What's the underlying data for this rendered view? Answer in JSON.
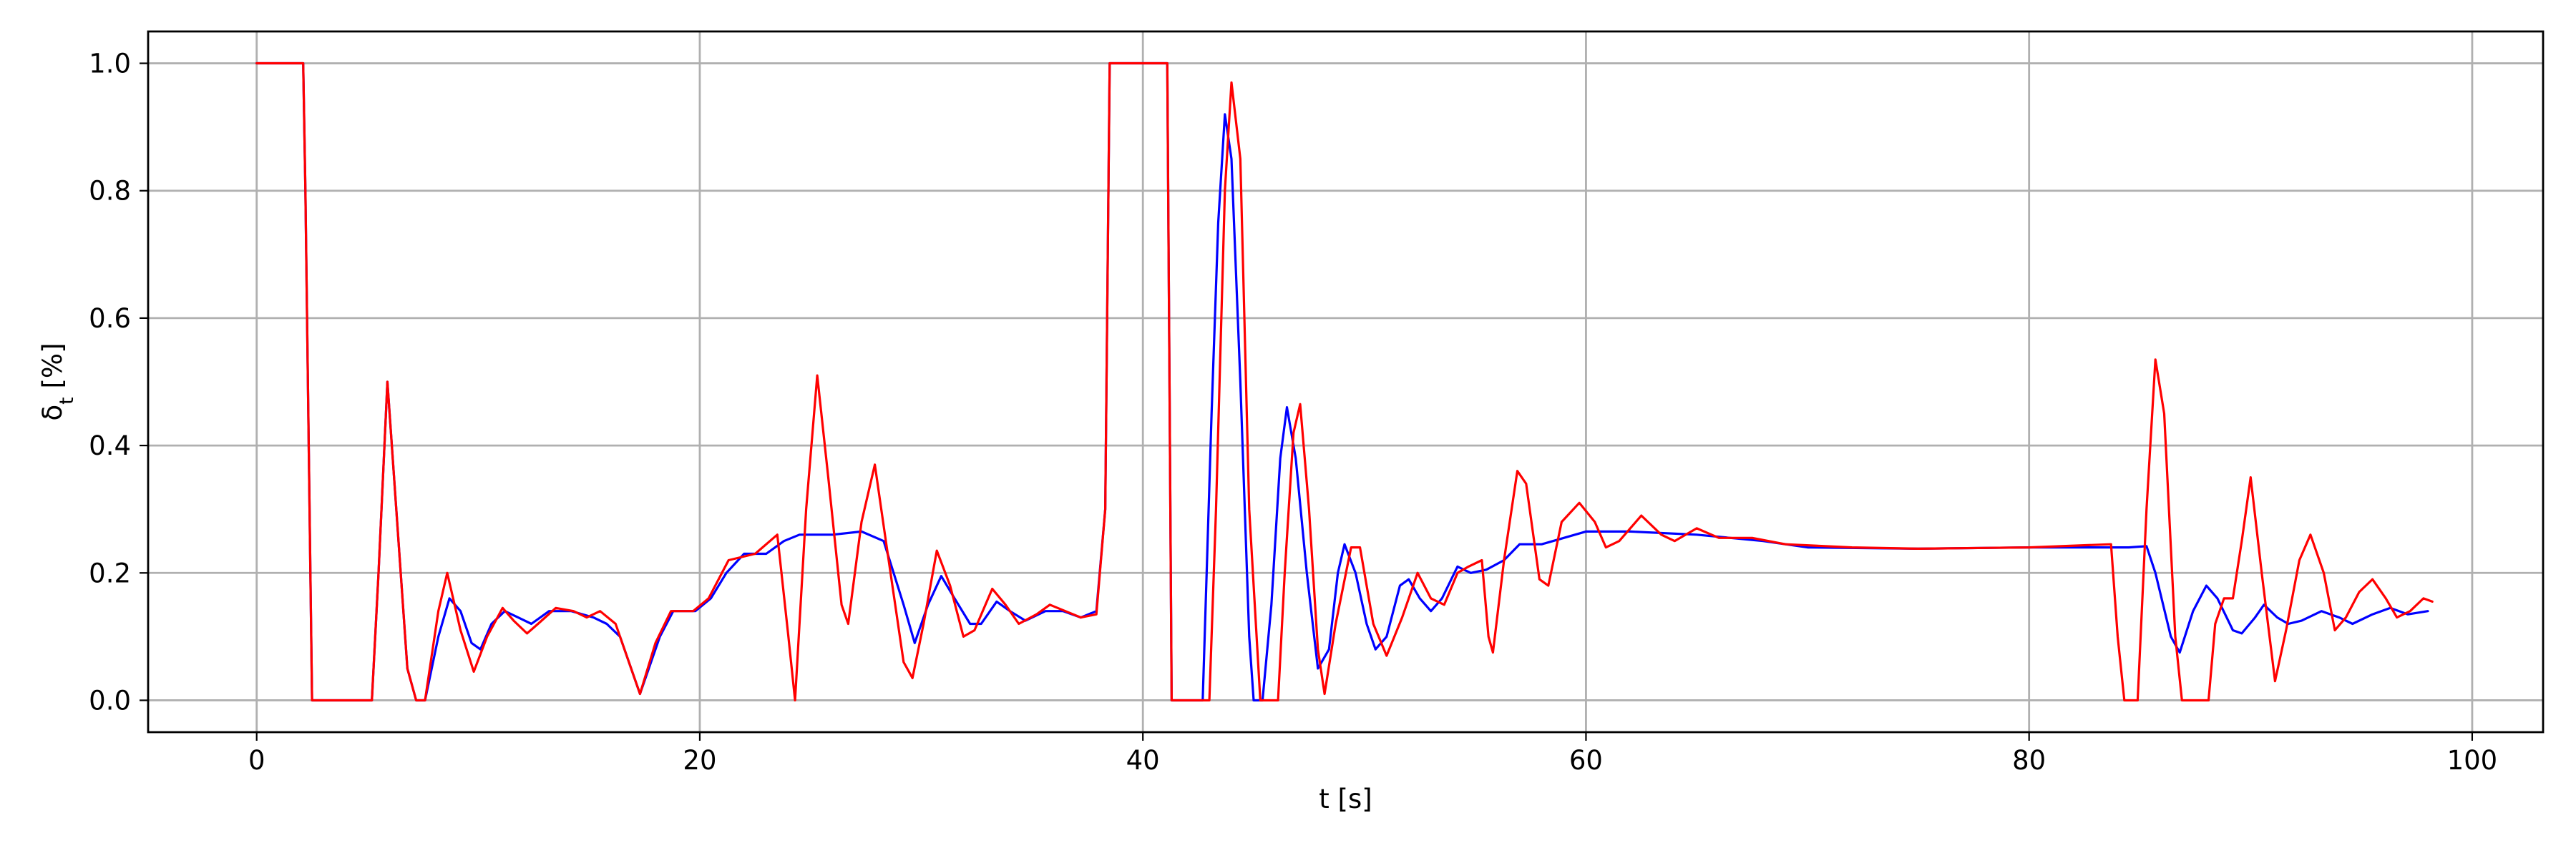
{
  "chart_data": {
    "type": "line",
    "title": "",
    "xlabel": "t [s]",
    "ylabel_base": "δ",
    "ylabel_sub": "t",
    "ylabel_unit": " [%]",
    "xlim": [
      -4.9,
      103.2
    ],
    "ylim": [
      -0.05,
      1.05
    ],
    "xticks": [
      0,
      20,
      40,
      60,
      80,
      100
    ],
    "yticks": [
      0.0,
      0.2,
      0.4,
      0.6,
      0.8,
      1.0
    ],
    "xtick_labels": [
      "0",
      "20",
      "40",
      "60",
      "80",
      "100"
    ],
    "ytick_labels": [
      "0.0",
      "0.2",
      "0.4",
      "0.6",
      "0.8",
      "1.0"
    ],
    "grid": true,
    "legend": "none",
    "series": [
      {
        "color": "#0000ff",
        "points": [
          [
            0.0,
            1.0
          ],
          [
            2.1,
            1.0
          ],
          [
            2.2,
            0.8
          ],
          [
            2.5,
            0.0
          ],
          [
            5.2,
            0.0
          ],
          [
            5.5,
            0.2
          ],
          [
            5.9,
            0.5
          ],
          [
            6.3,
            0.3
          ],
          [
            6.8,
            0.05
          ],
          [
            7.2,
            0.0
          ],
          [
            7.6,
            0.0
          ],
          [
            8.2,
            0.1
          ],
          [
            8.7,
            0.16
          ],
          [
            9.2,
            0.14
          ],
          [
            9.7,
            0.09
          ],
          [
            10.1,
            0.08
          ],
          [
            10.6,
            0.12
          ],
          [
            11.2,
            0.14
          ],
          [
            11.8,
            0.13
          ],
          [
            12.4,
            0.12
          ],
          [
            13.2,
            0.14
          ],
          [
            14.2,
            0.14
          ],
          [
            15.2,
            0.13
          ],
          [
            15.8,
            0.12
          ],
          [
            16.4,
            0.1
          ],
          [
            17.3,
            0.01
          ],
          [
            18.2,
            0.1
          ],
          [
            18.8,
            0.14
          ],
          [
            19.8,
            0.14
          ],
          [
            20.5,
            0.16
          ],
          [
            21.2,
            0.2
          ],
          [
            22.0,
            0.23
          ],
          [
            23.0,
            0.23
          ],
          [
            23.8,
            0.25
          ],
          [
            24.5,
            0.26
          ],
          [
            26.0,
            0.26
          ],
          [
            27.3,
            0.265
          ],
          [
            28.3,
            0.25
          ],
          [
            29.2,
            0.15
          ],
          [
            29.7,
            0.09
          ],
          [
            30.3,
            0.15
          ],
          [
            30.9,
            0.195
          ],
          [
            31.5,
            0.16
          ],
          [
            32.2,
            0.12
          ],
          [
            32.7,
            0.12
          ],
          [
            33.4,
            0.155
          ],
          [
            34.0,
            0.14
          ],
          [
            34.7,
            0.125
          ],
          [
            35.6,
            0.14
          ],
          [
            36.4,
            0.14
          ],
          [
            37.2,
            0.13
          ],
          [
            37.9,
            0.14
          ],
          [
            38.3,
            0.3
          ],
          [
            38.5,
            1.0
          ],
          [
            41.1,
            1.0
          ],
          [
            41.2,
            0.5
          ],
          [
            41.3,
            0.0
          ],
          [
            42.7,
            0.0
          ],
          [
            43.1,
            0.45
          ],
          [
            43.4,
            0.75
          ],
          [
            43.7,
            0.92
          ],
          [
            44.0,
            0.85
          ],
          [
            44.4,
            0.5
          ],
          [
            44.8,
            0.1
          ],
          [
            45.0,
            0.0
          ],
          [
            45.4,
            0.0
          ],
          [
            45.8,
            0.15
          ],
          [
            46.2,
            0.38
          ],
          [
            46.5,
            0.46
          ],
          [
            46.9,
            0.38
          ],
          [
            47.4,
            0.2
          ],
          [
            47.9,
            0.05
          ],
          [
            48.4,
            0.08
          ],
          [
            48.8,
            0.2
          ],
          [
            49.1,
            0.245
          ],
          [
            49.6,
            0.2
          ],
          [
            50.1,
            0.12
          ],
          [
            50.5,
            0.08
          ],
          [
            51.0,
            0.1
          ],
          [
            51.6,
            0.18
          ],
          [
            52.0,
            0.19
          ],
          [
            52.5,
            0.16
          ],
          [
            53.0,
            0.14
          ],
          [
            53.5,
            0.16
          ],
          [
            54.2,
            0.21
          ],
          [
            54.8,
            0.2
          ],
          [
            55.5,
            0.205
          ],
          [
            56.3,
            0.22
          ],
          [
            57.0,
            0.245
          ],
          [
            58.0,
            0.245
          ],
          [
            59.0,
            0.255
          ],
          [
            60.0,
            0.265
          ],
          [
            62.0,
            0.265
          ],
          [
            65.0,
            0.26
          ],
          [
            68.0,
            0.25
          ],
          [
            70.0,
            0.24
          ],
          [
            75.0,
            0.238
          ],
          [
            80.0,
            0.24
          ],
          [
            84.5,
            0.24
          ],
          [
            85.3,
            0.242
          ],
          [
            85.7,
            0.2
          ],
          [
            86.4,
            0.1
          ],
          [
            86.8,
            0.075
          ],
          [
            87.4,
            0.14
          ],
          [
            88.0,
            0.18
          ],
          [
            88.5,
            0.16
          ],
          [
            89.2,
            0.11
          ],
          [
            89.6,
            0.105
          ],
          [
            90.2,
            0.13
          ],
          [
            90.6,
            0.15
          ],
          [
            91.2,
            0.13
          ],
          [
            91.7,
            0.12
          ],
          [
            92.3,
            0.125
          ],
          [
            93.2,
            0.14
          ],
          [
            94.0,
            0.13
          ],
          [
            94.6,
            0.12
          ],
          [
            95.5,
            0.135
          ],
          [
            96.3,
            0.145
          ],
          [
            97.1,
            0.135
          ],
          [
            98.0,
            0.14
          ]
        ]
      },
      {
        "color": "#ff0000",
        "points": [
          [
            0.0,
            1.0
          ],
          [
            2.1,
            1.0
          ],
          [
            2.2,
            0.8
          ],
          [
            2.5,
            0.0
          ],
          [
            5.2,
            0.0
          ],
          [
            5.5,
            0.2
          ],
          [
            5.9,
            0.5
          ],
          [
            6.3,
            0.3
          ],
          [
            6.8,
            0.05
          ],
          [
            7.2,
            0.0
          ],
          [
            7.6,
            0.0
          ],
          [
            8.2,
            0.14
          ],
          [
            8.6,
            0.2
          ],
          [
            9.2,
            0.11
          ],
          [
            9.8,
            0.045
          ],
          [
            10.4,
            0.1
          ],
          [
            11.1,
            0.145
          ],
          [
            11.6,
            0.125
          ],
          [
            12.2,
            0.105
          ],
          [
            12.7,
            0.12
          ],
          [
            13.5,
            0.145
          ],
          [
            14.3,
            0.14
          ],
          [
            14.9,
            0.13
          ],
          [
            15.5,
            0.14
          ],
          [
            16.2,
            0.12
          ],
          [
            17.0,
            0.04
          ],
          [
            17.3,
            0.01
          ],
          [
            18.0,
            0.09
          ],
          [
            18.7,
            0.14
          ],
          [
            19.7,
            0.14
          ],
          [
            20.4,
            0.16
          ],
          [
            21.3,
            0.22
          ],
          [
            22.5,
            0.23
          ],
          [
            23.5,
            0.26
          ],
          [
            24.0,
            0.1
          ],
          [
            24.3,
            0.0
          ],
          [
            24.8,
            0.3
          ],
          [
            25.3,
            0.51
          ],
          [
            25.8,
            0.35
          ],
          [
            26.4,
            0.15
          ],
          [
            26.7,
            0.12
          ],
          [
            27.3,
            0.28
          ],
          [
            27.9,
            0.37
          ],
          [
            28.4,
            0.25
          ],
          [
            29.2,
            0.06
          ],
          [
            29.6,
            0.035
          ],
          [
            30.1,
            0.12
          ],
          [
            30.7,
            0.235
          ],
          [
            31.3,
            0.18
          ],
          [
            31.9,
            0.1
          ],
          [
            32.4,
            0.11
          ],
          [
            33.2,
            0.175
          ],
          [
            33.8,
            0.15
          ],
          [
            34.4,
            0.12
          ],
          [
            35.2,
            0.135
          ],
          [
            35.8,
            0.15
          ],
          [
            36.5,
            0.14
          ],
          [
            37.2,
            0.13
          ],
          [
            37.9,
            0.135
          ],
          [
            38.3,
            0.3
          ],
          [
            38.5,
            1.0
          ],
          [
            41.1,
            1.0
          ],
          [
            41.2,
            0.5
          ],
          [
            41.3,
            0.0
          ],
          [
            43.0,
            0.0
          ],
          [
            43.3,
            0.3
          ],
          [
            43.7,
            0.8
          ],
          [
            44.0,
            0.97
          ],
          [
            44.4,
            0.85
          ],
          [
            44.8,
            0.3
          ],
          [
            45.3,
            0.0
          ],
          [
            46.1,
            0.0
          ],
          [
            46.4,
            0.2
          ],
          [
            46.8,
            0.42
          ],
          [
            47.1,
            0.465
          ],
          [
            47.5,
            0.3
          ],
          [
            47.9,
            0.08
          ],
          [
            48.2,
            0.01
          ],
          [
            48.7,
            0.12
          ],
          [
            49.4,
            0.24
          ],
          [
            49.8,
            0.24
          ],
          [
            50.4,
            0.12
          ],
          [
            51.0,
            0.07
          ],
          [
            51.7,
            0.13
          ],
          [
            52.4,
            0.2
          ],
          [
            53.0,
            0.16
          ],
          [
            53.6,
            0.15
          ],
          [
            54.2,
            0.2
          ],
          [
            54.7,
            0.21
          ],
          [
            55.3,
            0.22
          ],
          [
            55.6,
            0.1
          ],
          [
            55.8,
            0.075
          ],
          [
            56.3,
            0.22
          ],
          [
            56.9,
            0.36
          ],
          [
            57.3,
            0.34
          ],
          [
            57.9,
            0.19
          ],
          [
            58.3,
            0.18
          ],
          [
            58.9,
            0.28
          ],
          [
            59.7,
            0.31
          ],
          [
            60.4,
            0.28
          ],
          [
            60.9,
            0.24
          ],
          [
            61.5,
            0.25
          ],
          [
            62.5,
            0.29
          ],
          [
            63.4,
            0.26
          ],
          [
            64.0,
            0.25
          ],
          [
            65.0,
            0.27
          ],
          [
            66.0,
            0.255
          ],
          [
            67.5,
            0.255
          ],
          [
            69.0,
            0.245
          ],
          [
            72.0,
            0.24
          ],
          [
            75.0,
            0.238
          ],
          [
            80.0,
            0.24
          ],
          [
            83.7,
            0.245
          ],
          [
            84.0,
            0.1
          ],
          [
            84.3,
            0.0
          ],
          [
            84.9,
            0.0
          ],
          [
            85.3,
            0.3
          ],
          [
            85.7,
            0.535
          ],
          [
            86.1,
            0.45
          ],
          [
            86.6,
            0.1
          ],
          [
            86.9,
            0.0
          ],
          [
            88.1,
            0.0
          ],
          [
            88.4,
            0.12
          ],
          [
            88.8,
            0.16
          ],
          [
            89.2,
            0.16
          ],
          [
            89.6,
            0.25
          ],
          [
            90.0,
            0.35
          ],
          [
            90.5,
            0.2
          ],
          [
            91.1,
            0.03
          ],
          [
            91.6,
            0.11
          ],
          [
            92.2,
            0.22
          ],
          [
            92.7,
            0.26
          ],
          [
            93.3,
            0.2
          ],
          [
            93.8,
            0.11
          ],
          [
            94.3,
            0.13
          ],
          [
            94.9,
            0.17
          ],
          [
            95.5,
            0.19
          ],
          [
            96.1,
            0.16
          ],
          [
            96.6,
            0.13
          ],
          [
            97.2,
            0.14
          ],
          [
            97.8,
            0.16
          ],
          [
            98.2,
            0.155
          ]
        ]
      }
    ]
  }
}
